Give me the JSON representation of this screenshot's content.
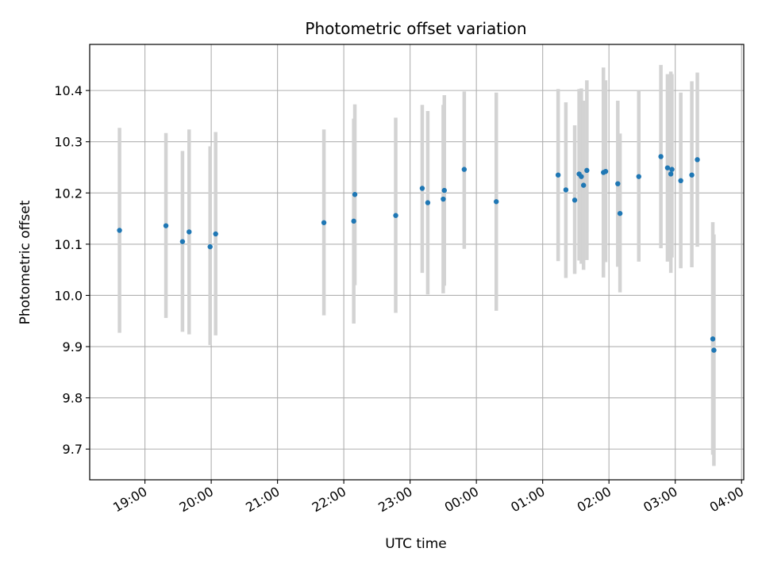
{
  "chart_data": {
    "type": "scatter",
    "title": "Photometric offset variation",
    "xlabel": "UTC time",
    "ylabel": "Photometric offset",
    "x_axis_kind": "time",
    "x_ticks": [
      "19:00",
      "20:00",
      "21:00",
      "22:00",
      "23:00",
      "00:00",
      "01:00",
      "02:00",
      "03:00",
      "04:00"
    ],
    "xlim": [
      "18:10",
      "04:02"
    ],
    "ylim": [
      9.64,
      10.49
    ],
    "y_ticks": [
      9.7,
      9.8,
      9.9,
      10.0,
      10.1,
      10.2,
      10.3,
      10.4
    ],
    "grid": true,
    "series": [
      {
        "marker_color": "#1f77b4",
        "errorbar_color": "#d3d3d3",
        "points": [
          {
            "x": "18:37",
            "y": 10.127,
            "lo": 9.927,
            "hi": 10.327
          },
          {
            "x": "19:19",
            "y": 10.136,
            "lo": 9.956,
            "hi": 10.317
          },
          {
            "x": "19:34",
            "y": 10.105,
            "lo": 9.929,
            "hi": 10.282
          },
          {
            "x": "19:40",
            "y": 10.124,
            "lo": 9.924,
            "hi": 10.324
          },
          {
            "x": "19:59",
            "y": 10.095,
            "lo": 9.903,
            "hi": 10.291
          },
          {
            "x": "20:04",
            "y": 10.12,
            "lo": 9.922,
            "hi": 10.319
          },
          {
            "x": "21:42",
            "y": 10.142,
            "lo": 9.961,
            "hi": 10.324
          },
          {
            "x": "22:09",
            "y": 10.145,
            "lo": 9.945,
            "hi": 10.345
          },
          {
            "x": "22:10",
            "y": 10.197,
            "lo": 10.02,
            "hi": 10.373
          },
          {
            "x": "22:47",
            "y": 10.156,
            "lo": 9.966,
            "hi": 10.347
          },
          {
            "x": "23:11",
            "y": 10.209,
            "lo": 10.044,
            "hi": 10.372
          },
          {
            "x": "23:16",
            "y": 10.181,
            "lo": 10.002,
            "hi": 10.36
          },
          {
            "x": "23:30",
            "y": 10.188,
            "lo": 10.004,
            "hi": 10.372
          },
          {
            "x": "23:31",
            "y": 10.205,
            "lo": 10.019,
            "hi": 10.391
          },
          {
            "x": "23:49",
            "y": 10.246,
            "lo": 10.091,
            "hi": 10.398
          },
          {
            "x": "00:18",
            "y": 10.183,
            "lo": 9.97,
            "hi": 10.396
          },
          {
            "x": "01:14",
            "y": 10.235,
            "lo": 10.067,
            "hi": 10.403
          },
          {
            "x": "01:21",
            "y": 10.206,
            "lo": 10.034,
            "hi": 10.377
          },
          {
            "x": "01:29",
            "y": 10.186,
            "lo": 10.042,
            "hi": 10.332
          },
          {
            "x": "01:33",
            "y": 10.237,
            "lo": 10.068,
            "hi": 10.403
          },
          {
            "x": "01:35",
            "y": 10.232,
            "lo": 10.062,
            "hi": 10.404
          },
          {
            "x": "01:37",
            "y": 10.215,
            "lo": 10.05,
            "hi": 10.38
          },
          {
            "x": "01:40",
            "y": 10.244,
            "lo": 10.069,
            "hi": 10.42
          },
          {
            "x": "01:55",
            "y": 10.24,
            "lo": 10.035,
            "hi": 10.445
          },
          {
            "x": "01:57",
            "y": 10.242,
            "lo": 10.065,
            "hi": 10.42
          },
          {
            "x": "02:08",
            "y": 10.218,
            "lo": 10.056,
            "hi": 10.38
          },
          {
            "x": "02:10",
            "y": 10.16,
            "lo": 10.006,
            "hi": 10.316
          },
          {
            "x": "02:27",
            "y": 10.232,
            "lo": 10.066,
            "hi": 10.4
          },
          {
            "x": "02:47",
            "y": 10.271,
            "lo": 10.092,
            "hi": 10.45
          },
          {
            "x": "02:53",
            "y": 10.249,
            "lo": 10.066,
            "hi": 10.432
          },
          {
            "x": "02:56",
            "y": 10.237,
            "lo": 10.044,
            "hi": 10.437
          },
          {
            "x": "02:57",
            "y": 10.246,
            "lo": 10.074,
            "hi": 10.432
          },
          {
            "x": "03:05",
            "y": 10.224,
            "lo": 10.053,
            "hi": 10.396
          },
          {
            "x": "03:15",
            "y": 10.235,
            "lo": 10.055,
            "hi": 10.418
          },
          {
            "x": "03:20",
            "y": 10.265,
            "lo": 10.095,
            "hi": 10.435
          },
          {
            "x": "03:34",
            "y": 9.915,
            "lo": 9.689,
            "hi": 10.143
          },
          {
            "x": "03:35",
            "y": 9.893,
            "lo": 9.667,
            "hi": 10.119
          }
        ]
      }
    ]
  }
}
